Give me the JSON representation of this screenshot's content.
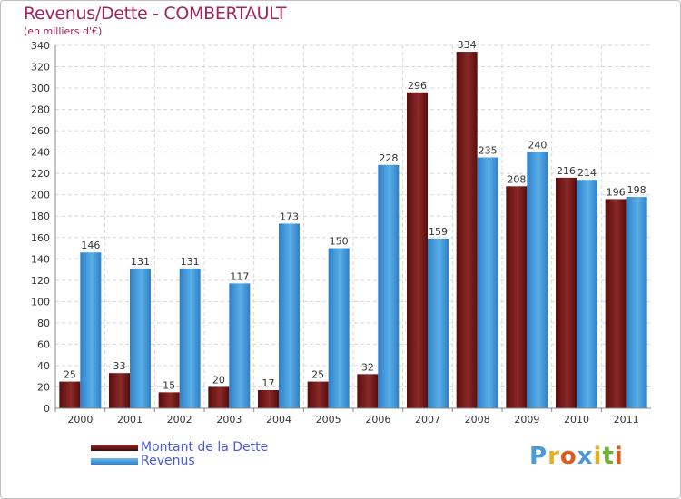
{
  "title": "Revenus/Dette - COMBERTAULT",
  "subtitle": "(en milliers d'€)",
  "logo": {
    "letters": [
      "P",
      "r",
      "o",
      "x",
      "i",
      "t",
      "i"
    ],
    "colors": [
      "#4a9ad8",
      "#e8b020",
      "#e05a20",
      "#4a9ad8",
      "#e8b020",
      "#70b030",
      "#e05a20"
    ]
  },
  "chart_data": {
    "type": "bar",
    "categories": [
      "2000",
      "2001",
      "2002",
      "2003",
      "2004",
      "2005",
      "2006",
      "2007",
      "2008",
      "2009",
      "2010",
      "2011"
    ],
    "series": [
      {
        "name": "Montant de la Dette",
        "color": "#7a1a1a",
        "values": [
          25,
          33,
          15,
          20,
          17,
          25,
          32,
          296,
          334,
          208,
          216,
          196
        ]
      },
      {
        "name": "Revenus",
        "color": "#4a9ee0",
        "values": [
          146,
          131,
          131,
          117,
          173,
          150,
          228,
          159,
          235,
          240,
          214,
          198
        ]
      }
    ],
    "ylim": [
      0,
      340
    ],
    "ytick_step": 20,
    "grid": true,
    "legend_position": "bottom-left"
  }
}
